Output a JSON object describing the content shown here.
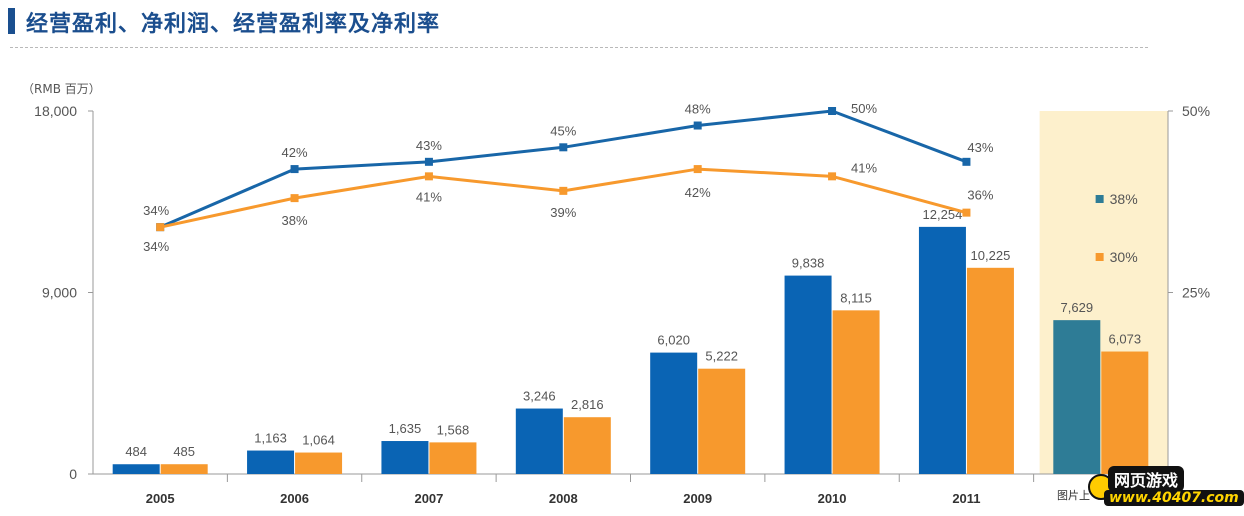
{
  "header": {
    "title": "经营盈利、净利润、经营盈利率及净利率"
  },
  "unit_label": "（RMB 百万）",
  "colors": {
    "operating_bar": "#0a64b4",
    "net_bar": "#f7992d",
    "highlight_bar": "#2e7c96",
    "highlight_bg": "#fdf0cc",
    "operating_line": "#1866a8",
    "net_line": "#f7992d"
  },
  "chart_data": {
    "type": "bar",
    "categories": [
      "2005",
      "2006",
      "2007",
      "2008",
      "2009",
      "2010",
      "2011",
      ""
    ],
    "series": [
      {
        "values": [
          484,
          1163,
          1635,
          3246,
          6020,
          9838,
          12254,
          7629
        ],
        "labels": [
          "484",
          "1,163",
          "1,635",
          "3,246",
          "6,020",
          "9,838",
          "12,254",
          "7,629"
        ]
      },
      {
        "values": [
          485,
          1064,
          1568,
          2816,
          5222,
          8115,
          10225,
          6073
        ],
        "labels": [
          "485",
          "1,064",
          "1,568",
          "2,816",
          "5,222",
          "8,115",
          "10,225",
          "6,073"
        ]
      }
    ],
    "lines": [
      {
        "values": [
          34,
          42,
          43,
          45,
          48,
          50,
          43
        ],
        "labels": [
          "34%",
          "42%",
          "43%",
          "45%",
          "48%",
          "50%",
          "43%"
        ]
      },
      {
        "values": [
          34,
          38,
          41,
          39,
          42,
          41,
          36
        ],
        "labels": [
          "34%",
          "38%",
          "41%",
          "39%",
          "42%",
          "41%",
          "36%"
        ]
      }
    ],
    "highlight_legend": [
      {
        "marker": "operating",
        "label": "38%"
      },
      {
        "marker": "net",
        "label": "30%"
      }
    ],
    "y_left": {
      "ticks": [
        0,
        9000,
        18000
      ],
      "tick_labels": [
        "0",
        "9,000",
        "18,000"
      ],
      "ylim": [
        0,
        18000
      ]
    },
    "y_right": {
      "ticks": [
        25,
        50
      ],
      "tick_labels": [
        "25%",
        "50%"
      ],
      "note": "percent axis, 0% at baseline"
    }
  },
  "watermark": {
    "top": "网页游戏",
    "bottom": "www.40407.com",
    "prefix": "图片上"
  }
}
